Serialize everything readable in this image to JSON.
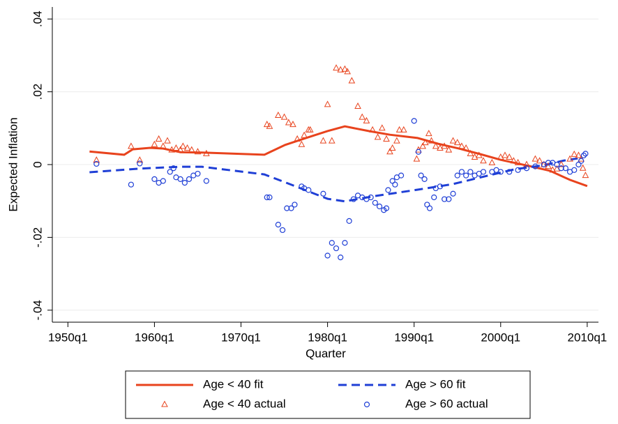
{
  "chart_data": {
    "type": "scatter",
    "x_label": "Quarter",
    "y_label": "Expected Inflation",
    "xlim": [
      1948.2,
      2011.3
    ],
    "ylim": [
      -0.0433,
      0.0433
    ],
    "xticks": [
      {
        "value": 1950,
        "label": "1950q1"
      },
      {
        "value": 1960,
        "label": "1960q1"
      },
      {
        "value": 1970,
        "label": "1970q1"
      },
      {
        "value": 1980,
        "label": "1980q1"
      },
      {
        "value": 1990,
        "label": "1990q1"
      },
      {
        "value": 2000,
        "label": "2000q1"
      },
      {
        "value": 2010,
        "label": "2010q1"
      }
    ],
    "yticks": [
      {
        "value": -0.04,
        "label": "-.04"
      },
      {
        "value": -0.02,
        "label": "-.02"
      },
      0,
      {
        "value": 0.02,
        "label": ".02"
      },
      {
        "value": 0.04,
        "label": ".04"
      }
    ],
    "grid": true,
    "legend": "bottom",
    "series": [
      {
        "name": "Age < 40 fit",
        "type": "line",
        "color": "#e8431d",
        "dash": false,
        "x": [
          1952.5,
          1956.5,
          1957.5,
          1959.5,
          1961,
          1963,
          1965.5,
          1972.7,
          1975.1,
          1977.5,
          1980,
          1982,
          1984.8,
          1987.2,
          1990.4,
          1992.8,
          1995.2,
          1997.6,
          2000,
          2003.3,
          2005.7,
          2008,
          2010
        ],
        "values": [
          0.0036,
          0.0027,
          0.0042,
          0.0046,
          0.0044,
          0.0034,
          0.0033,
          0.0027,
          0.0054,
          0.0073,
          0.0092,
          0.0105,
          0.0092,
          0.0082,
          0.0073,
          0.0057,
          0.0044,
          0.0029,
          0.0013,
          -0.0004,
          -0.0017,
          -0.0042,
          -0.0059
        ]
      },
      {
        "name": "Age > 60 fit",
        "type": "line",
        "color": "#1f3fd6",
        "dash": true,
        "x": [
          1952.5,
          1958.3,
          1963,
          1965.5,
          1972.7,
          1976,
          1980,
          1982,
          1985.6,
          1990.4,
          1994.4,
          1998.4,
          2001.6,
          2004.9,
          2007.3,
          2008.9
        ],
        "values": [
          -0.0021,
          -0.0011,
          -0.0006,
          -0.0006,
          -0.0027,
          -0.0057,
          -0.0094,
          -0.0101,
          -0.0086,
          -0.0069,
          -0.0054,
          -0.0031,
          -0.0013,
          -0.0002,
          0.0011,
          0.0017
        ]
      },
      {
        "name": "Age < 40 actual",
        "type": "triangle",
        "color": "#e8431d",
        "x": [
          1953.3,
          1957.3,
          1958.3,
          1960,
          1960.5,
          1961,
          1961.5,
          1962,
          1962.5,
          1963,
          1963.3,
          1963.8,
          1964.3,
          1965,
          1966,
          1973,
          1973.3,
          1974.3,
          1975,
          1975.5,
          1976,
          1976.5,
          1977,
          1977.3,
          1977.8,
          1978,
          1979.5,
          1980,
          1980.5,
          1981,
          1981.5,
          1982,
          1982.3,
          1982.8,
          1983.5,
          1984,
          1984.5,
          1985.2,
          1985.8,
          1986.3,
          1986.8,
          1987.2,
          1987.5,
          1988,
          1988.3,
          1988.8,
          1990.3,
          1990.5,
          1991,
          1991.3,
          1991.7,
          1992,
          1992.5,
          1993,
          1993.5,
          1994,
          1994.5,
          1995,
          1995.5,
          1996,
          1996.5,
          1997,
          1997.5,
          1998,
          1999,
          2000,
          2000.5,
          2001,
          2001.5,
          2002,
          2003,
          2004,
          2004.5,
          2005,
          2005.5,
          2006,
          2006.5,
          2007,
          2008,
          2008.5,
          2009,
          2009.3,
          2009.5,
          2009.8
        ],
        "values": [
          0.0012,
          0.005,
          0.0012,
          0.0055,
          0.007,
          0.005,
          0.0065,
          0.004,
          0.0045,
          0.004,
          0.005,
          0.0045,
          0.004,
          0.0035,
          0.003,
          0.011,
          0.0105,
          0.0135,
          0.013,
          0.0115,
          0.011,
          0.007,
          0.0055,
          0.008,
          0.0095,
          0.0095,
          0.0065,
          0.0165,
          0.0065,
          0.0265,
          0.026,
          0.0262,
          0.0255,
          0.023,
          0.016,
          0.013,
          0.012,
          0.0095,
          0.0075,
          0.01,
          0.007,
          0.0035,
          0.0045,
          0.0065,
          0.0095,
          0.0095,
          0.0015,
          0.004,
          0.005,
          0.006,
          0.0085,
          0.0065,
          0.005,
          0.0045,
          0.005,
          0.004,
          0.0065,
          0.006,
          0.005,
          0.0045,
          0.003,
          0.002,
          0.0025,
          0.001,
          0.0005,
          0.002,
          0.0025,
          0.002,
          0.001,
          0.0005,
          0.0,
          0.0015,
          0.001,
          0.0,
          -0.0005,
          -0.0015,
          -0.0012,
          0.0,
          0.0015,
          0.0028,
          0.0025,
          0.0015,
          -0.001,
          -0.003
        ]
      },
      {
        "name": "Age > 60 actual",
        "type": "circle",
        "color": "#1f3fd6",
        "x": [
          1953.3,
          1957.3,
          1958.3,
          1960,
          1960.5,
          1961,
          1961.8,
          1962.2,
          1962.5,
          1963,
          1963.5,
          1964,
          1964.5,
          1965,
          1966,
          1973,
          1973.3,
          1974.3,
          1974.8,
          1975.3,
          1975.8,
          1976.2,
          1977,
          1977.3,
          1977.8,
          1979.5,
          1980,
          1980.5,
          1981,
          1981.5,
          1982,
          1982.5,
          1983,
          1983.5,
          1984,
          1984.5,
          1985,
          1985.5,
          1986,
          1986.5,
          1986.8,
          1987,
          1987.5,
          1987.8,
          1988,
          1988.5,
          1990,
          1990.5,
          1990.8,
          1991.2,
          1991.5,
          1991.8,
          1992.3,
          1992.5,
          1993,
          1993.5,
          1994,
          1994.5,
          1995,
          1995.5,
          1996,
          1996.5,
          1997,
          1997.5,
          1998,
          1999,
          1999.5,
          2000,
          2001,
          2002,
          2003,
          2004,
          2005,
          2005.5,
          2006,
          2006.5,
          2007,
          2007.5,
          2008,
          2008.5,
          2009,
          2009.3,
          2009.6,
          2009.8
        ],
        "values": [
          0.0002,
          -0.0055,
          0.0003,
          -0.004,
          -0.005,
          -0.0045,
          -0.002,
          -0.001,
          -0.0035,
          -0.004,
          -0.005,
          -0.004,
          -0.003,
          -0.0025,
          -0.0045,
          -0.009,
          -0.009,
          -0.0165,
          -0.018,
          -0.012,
          -0.012,
          -0.011,
          -0.006,
          -0.0065,
          -0.007,
          -0.008,
          -0.025,
          -0.0215,
          -0.023,
          -0.0255,
          -0.0215,
          -0.0155,
          -0.0095,
          -0.0085,
          -0.009,
          -0.0095,
          -0.009,
          -0.0105,
          -0.0115,
          -0.0125,
          -0.012,
          -0.007,
          -0.0045,
          -0.0055,
          -0.0035,
          -0.003,
          0.012,
          0.0035,
          -0.003,
          -0.004,
          -0.011,
          -0.012,
          -0.009,
          -0.0065,
          -0.006,
          -0.0095,
          -0.0095,
          -0.008,
          -0.003,
          -0.002,
          -0.003,
          -0.002,
          -0.003,
          -0.0025,
          -0.002,
          -0.002,
          -0.0015,
          -0.002,
          -0.002,
          -0.0015,
          -0.001,
          -0.0005,
          0.0,
          0.0005,
          0.0005,
          0.0,
          -0.001,
          -0.001,
          -0.002,
          -0.0015,
          0.0,
          0.001,
          0.0025,
          0.003
        ]
      }
    ]
  }
}
